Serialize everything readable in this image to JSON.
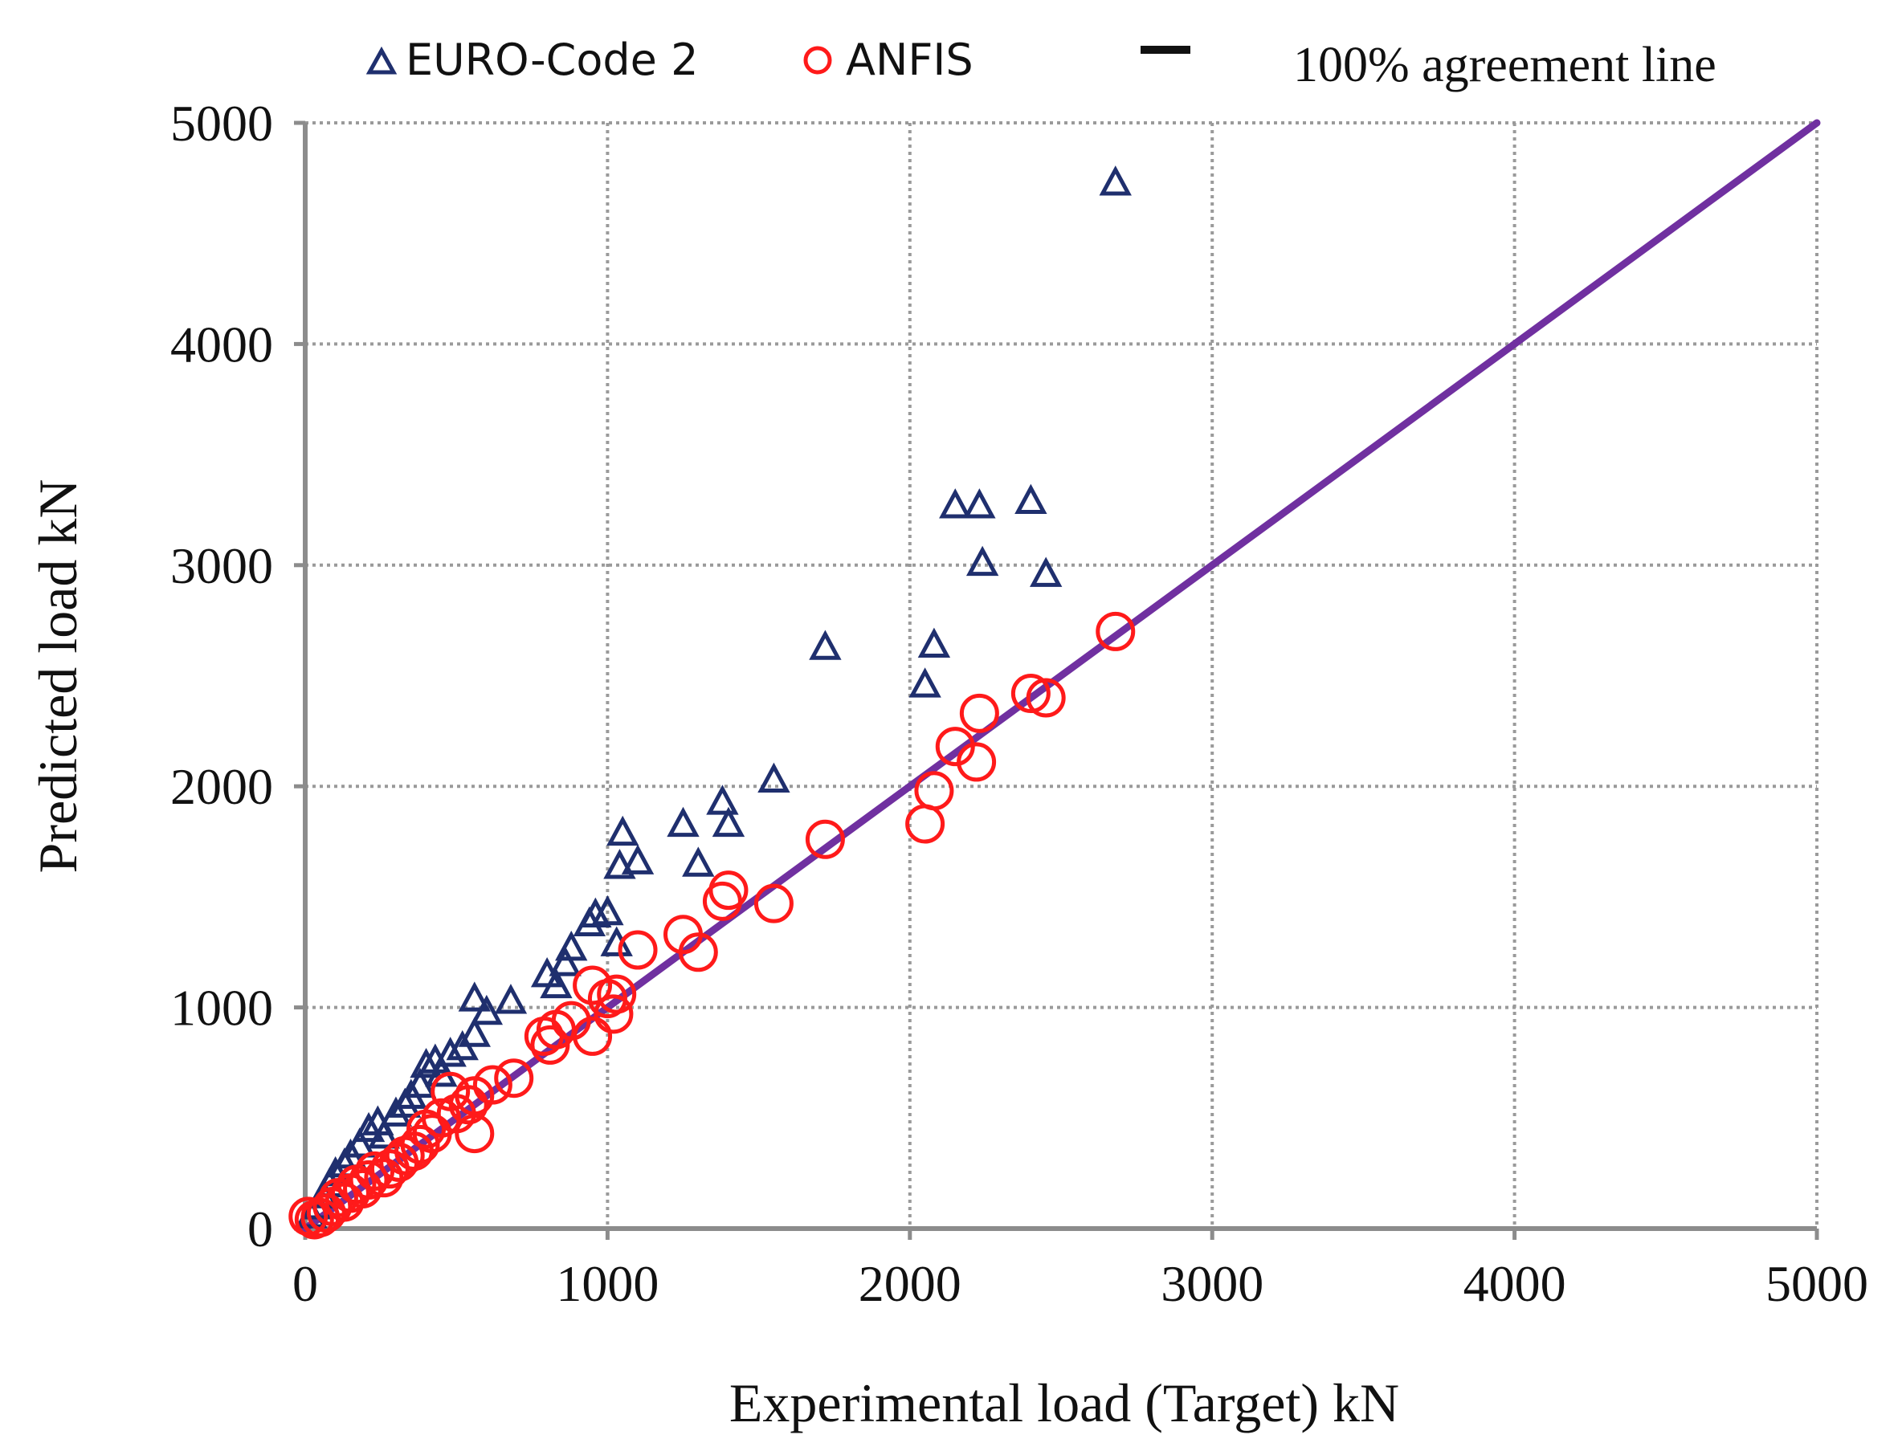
{
  "chart_data": {
    "type": "scatter",
    "title": "",
    "xlabel": "Experimental load (Target)  kN",
    "ylabel": "Predicted load  kN",
    "xlim": [
      0,
      5000
    ],
    "ylim": [
      0,
      5000
    ],
    "xticks": [
      "0",
      "1000",
      "2000",
      "3000",
      "4000",
      "5000"
    ],
    "yticks": [
      "0",
      "1000",
      "2000",
      "3000",
      "4000",
      "5000"
    ],
    "grid": true,
    "legend_position": "top",
    "colors": {
      "euro": "#1f2f6e",
      "anfis": "#ff1a1a",
      "line": "#7030a0",
      "axis": "#8c8c8c",
      "grid": "#9a9a9a"
    },
    "reference_line": {
      "name": "100% agreement line",
      "points": [
        [
          0,
          0
        ],
        [
          5000,
          5000
        ]
      ]
    },
    "series": [
      {
        "name": "EURO-Code 2",
        "marker": "triangle",
        "points": [
          [
            2680,
            4730
          ],
          [
            2150,
            3270
          ],
          [
            2230,
            3270
          ],
          [
            2400,
            3290
          ],
          [
            2240,
            3010
          ],
          [
            2450,
            2960
          ],
          [
            1720,
            2630
          ],
          [
            2080,
            2640
          ],
          [
            2050,
            2460
          ],
          [
            1550,
            2030
          ],
          [
            1380,
            1930
          ],
          [
            1250,
            1830
          ],
          [
            1400,
            1830
          ],
          [
            1050,
            1790
          ],
          [
            1040,
            1640
          ],
          [
            1100,
            1660
          ],
          [
            1300,
            1650
          ],
          [
            960,
            1420
          ],
          [
            1000,
            1430
          ],
          [
            940,
            1380
          ],
          [
            1030,
            1290
          ],
          [
            880,
            1270
          ],
          [
            860,
            1200
          ],
          [
            800,
            1150
          ],
          [
            830,
            1100
          ],
          [
            560,
            1040
          ],
          [
            680,
            1030
          ],
          [
            600,
            980
          ],
          [
            560,
            880
          ],
          [
            520,
            820
          ],
          [
            480,
            790
          ],
          [
            430,
            760
          ],
          [
            400,
            740
          ],
          [
            450,
            700
          ],
          [
            380,
            650
          ],
          [
            350,
            600
          ],
          [
            330,
            560
          ],
          [
            300,
            520
          ],
          [
            240,
            480
          ],
          [
            210,
            450
          ],
          [
            260,
            420
          ],
          [
            180,
            380
          ],
          [
            150,
            330
          ],
          [
            130,
            290
          ],
          [
            100,
            250
          ],
          [
            80,
            200
          ],
          [
            60,
            150
          ],
          [
            40,
            100
          ],
          [
            20,
            60
          ]
        ]
      },
      {
        "name": "ANFIS",
        "marker": "circle",
        "points": [
          [
            2680,
            2700
          ],
          [
            2400,
            2420
          ],
          [
            2450,
            2400
          ],
          [
            2230,
            2330
          ],
          [
            2150,
            2180
          ],
          [
            2220,
            2110
          ],
          [
            2080,
            1980
          ],
          [
            2050,
            1830
          ],
          [
            1720,
            1760
          ],
          [
            1550,
            1470
          ],
          [
            1400,
            1530
          ],
          [
            1380,
            1480
          ],
          [
            1100,
            1260
          ],
          [
            1250,
            1330
          ],
          [
            1300,
            1250
          ],
          [
            1030,
            1060
          ],
          [
            1000,
            1040
          ],
          [
            950,
            1100
          ],
          [
            1020,
            970
          ],
          [
            950,
            870
          ],
          [
            880,
            940
          ],
          [
            830,
            900
          ],
          [
            790,
            870
          ],
          [
            810,
            830
          ],
          [
            690,
            680
          ],
          [
            620,
            650
          ],
          [
            560,
            600
          ],
          [
            540,
            560
          ],
          [
            560,
            430
          ],
          [
            480,
            620
          ],
          [
            500,
            520
          ],
          [
            450,
            500
          ],
          [
            420,
            430
          ],
          [
            400,
            450
          ],
          [
            380,
            380
          ],
          [
            360,
            350
          ],
          [
            330,
            330
          ],
          [
            310,
            300
          ],
          [
            280,
            270
          ],
          [
            260,
            230
          ],
          [
            230,
            260
          ],
          [
            210,
            220
          ],
          [
            190,
            180
          ],
          [
            170,
            200
          ],
          [
            150,
            160
          ],
          [
            130,
            120
          ],
          [
            110,
            140
          ],
          [
            90,
            100
          ],
          [
            70,
            70
          ],
          [
            50,
            50
          ],
          [
            30,
            40
          ],
          [
            10,
            55
          ]
        ]
      }
    ]
  }
}
